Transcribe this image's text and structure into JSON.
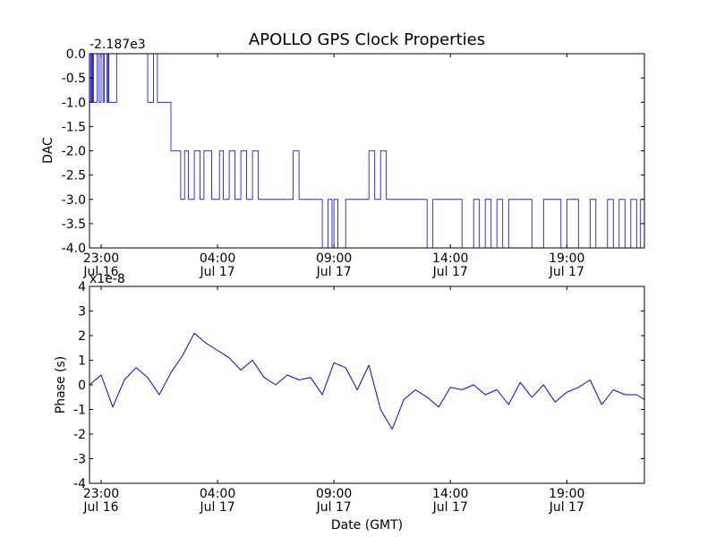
{
  "title": "APOLLO GPS Clock Properties",
  "x_tick_labels": [
    {
      "time": "23:00",
      "date": "Jul 16"
    },
    {
      "time": "04:00",
      "date": "Jul 17"
    },
    {
      "time": "09:00",
      "date": "Jul 17"
    },
    {
      "time": "14:00",
      "date": "Jul 17"
    },
    {
      "time": "19:00",
      "date": "Jul 17"
    }
  ],
  "chart_data": [
    {
      "type": "line",
      "name": "dac",
      "offset_label": "-2.187e3",
      "ylabel": "DAC",
      "xlim": [
        "Jul 16 22:30",
        "Jul 17 22:20"
      ],
      "ylim": [
        -4.0,
        0.0
      ],
      "yticks": [
        "0.0",
        "-0.5",
        "-1.0",
        "-1.5",
        "-2.0",
        "-2.5",
        "-3.0",
        "-3.5",
        "-4.0"
      ],
      "xticks": [
        "Jul 16 23:00",
        "Jul 17 04:00",
        "Jul 17 09:00",
        "Jul 17 14:00",
        "Jul 17 19:00"
      ],
      "color": "#0000ff",
      "series": [
        {
          "x": [
            "Jul 16 22:30",
            "Jul 16 22:33",
            "Jul 16 22:36",
            "Jul 16 22:38",
            "Jul 16 22:40",
            "Jul 16 22:50",
            "Jul 16 22:55",
            "Jul 16 23:00",
            "Jul 16 23:05",
            "Jul 16 23:08",
            "Jul 16 23:15",
            "Jul 16 23:18",
            "Jul 16 23:20",
            "Jul 16 23:35",
            "Jul 16 23:40",
            "Jul 17 00:05",
            "Jul 17 01:00",
            "Jul 17 01:15",
            "Jul 17 01:25",
            "Jul 17 01:45",
            "Jul 17 02:00",
            "Jul 17 02:20",
            "Jul 17 02:25",
            "Jul 17 02:35",
            "Jul 17 02:45",
            "Jul 17 03:00",
            "Jul 17 03:15",
            "Jul 17 03:25",
            "Jul 17 03:45",
            "Jul 17 04:05",
            "Jul 17 04:15",
            "Jul 17 04:30",
            "Jul 17 04:45",
            "Jul 17 05:00",
            "Jul 17 05:15",
            "Jul 17 05:30",
            "Jul 17 05:45",
            "Jul 17 07:00",
            "Jul 17 07:15",
            "Jul 17 07:30",
            "Jul 17 08:15",
            "Jul 17 08:30",
            "Jul 17 08:45",
            "Jul 17 08:55",
            "Jul 17 09:00",
            "Jul 17 09:10",
            "Jul 17 09:30",
            "Jul 17 10:00",
            "Jul 17 10:30",
            "Jul 17 10:45",
            "Jul 17 11:00",
            "Jul 17 11:15",
            "Jul 17 11:30",
            "Jul 17 11:45",
            "Jul 17 12:00",
            "Jul 17 13:00",
            "Jul 17 13:15",
            "Jul 17 13:30",
            "Jul 17 14:00",
            "Jul 17 14:30",
            "Jul 17 15:00",
            "Jul 17 15:15",
            "Jul 17 15:30",
            "Jul 17 15:45",
            "Jul 17 16:00",
            "Jul 17 16:15",
            "Jul 17 16:30",
            "Jul 17 17:00",
            "Jul 17 17:30",
            "Jul 17 18:00",
            "Jul 17 18:30",
            "Jul 17 18:45",
            "Jul 17 19:00",
            "Jul 17 19:30",
            "Jul 17 20:00",
            "Jul 17 20:15",
            "Jul 17 20:45",
            "Jul 17 21:00",
            "Jul 17 21:15",
            "Jul 17 21:30",
            "Jul 17 21:45",
            "Jul 17 22:00",
            "Jul 17 22:10",
            "Jul 17 22:20"
          ],
          "y": [
            -1,
            0,
            -1,
            0,
            -1,
            0,
            -1,
            0,
            -1,
            0,
            -1,
            0,
            -1,
            -1,
            0,
            0,
            -1,
            0,
            -1,
            -1,
            -2,
            -2,
            -3,
            -2,
            -3,
            -2,
            -3,
            -2,
            -3,
            -2,
            -3,
            -2,
            -3,
            -2,
            -3,
            -2,
            -3,
            -3,
            -2,
            -3,
            -3,
            -4,
            -3,
            -4,
            -3,
            -4,
            -3,
            -3,
            -2,
            -3,
            -2,
            -3,
            -3,
            -3,
            -3,
            -4,
            -3,
            -3,
            -3,
            -4,
            -3,
            -4,
            -3,
            -4,
            -3,
            -4,
            -3,
            -3,
            -4,
            -3,
            -3,
            -4,
            -3,
            -4,
            -3,
            -4,
            -3,
            -4,
            -3,
            -4,
            -3,
            -4,
            -3,
            -4
          ]
        }
      ]
    },
    {
      "type": "line",
      "name": "phase",
      "offset_label": "x1e-8",
      "ylabel": "Phase (s)",
      "xlabel": "Date (GMT)",
      "xlim": [
        "Jul 16 22:30",
        "Jul 17 22:20"
      ],
      "ylim": [
        -4,
        4
      ],
      "yticks": [
        "4",
        "3",
        "2",
        "1",
        "0",
        "-1",
        "-2",
        "-3",
        "-4"
      ],
      "xticks": [
        "Jul 16 23:00",
        "Jul 17 04:00",
        "Jul 17 09:00",
        "Jul 17 14:00",
        "Jul 17 19:00"
      ],
      "color": "#0000ff",
      "series": [
        {
          "x": [
            "Jul 16 22:30",
            "Jul 16 23:00",
            "Jul 16 23:30",
            "Jul 17 00:00",
            "Jul 17 00:30",
            "Jul 17 01:00",
            "Jul 17 01:30",
            "Jul 17 02:00",
            "Jul 17 02:30",
            "Jul 17 03:00",
            "Jul 17 03:30",
            "Jul 17 04:00",
            "Jul 17 04:30",
            "Jul 17 05:00",
            "Jul 17 05:30",
            "Jul 17 06:00",
            "Jul 17 06:30",
            "Jul 17 07:00",
            "Jul 17 07:30",
            "Jul 17 08:00",
            "Jul 17 08:30",
            "Jul 17 09:00",
            "Jul 17 09:30",
            "Jul 17 10:00",
            "Jul 17 10:30",
            "Jul 17 11:00",
            "Jul 17 11:30",
            "Jul 17 12:00",
            "Jul 17 12:30",
            "Jul 17 13:00",
            "Jul 17 13:30",
            "Jul 17 14:00",
            "Jul 17 14:30",
            "Jul 17 15:00",
            "Jul 17 15:30",
            "Jul 17 16:00",
            "Jul 17 16:30",
            "Jul 17 17:00",
            "Jul 17 17:30",
            "Jul 17 18:00",
            "Jul 17 18:30",
            "Jul 17 19:00",
            "Jul 17 19:30",
            "Jul 17 20:00",
            "Jul 17 20:30",
            "Jul 17 21:00",
            "Jul 17 21:30",
            "Jul 17 22:00",
            "Jul 17 22:20"
          ],
          "y": [
            0.0,
            0.4,
            -0.9,
            0.2,
            0.7,
            0.3,
            -0.4,
            0.5,
            1.2,
            2.1,
            1.7,
            1.4,
            1.1,
            0.6,
            1.0,
            0.3,
            0.0,
            0.4,
            0.2,
            0.3,
            -0.4,
            0.9,
            0.7,
            -0.2,
            0.8,
            -1.0,
            -1.8,
            -0.6,
            -0.2,
            -0.5,
            -0.9,
            -0.1,
            -0.2,
            0.0,
            -0.4,
            -0.2,
            -0.8,
            0.1,
            -0.5,
            0.0,
            -0.7,
            -0.3,
            -0.1,
            0.2,
            -0.8,
            -0.2,
            -0.4,
            -0.4,
            -0.6
          ]
        }
      ]
    }
  ]
}
